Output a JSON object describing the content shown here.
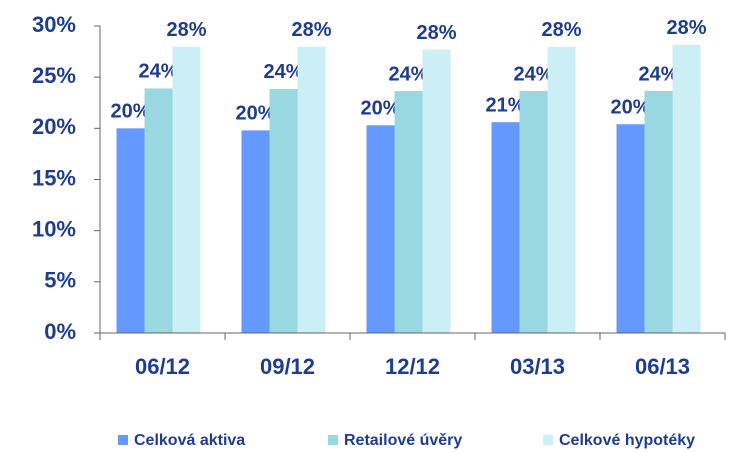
{
  "chart_data": {
    "type": "bar",
    "categories": [
      "06/12",
      "09/12",
      "12/12",
      "03/13",
      "06/13"
    ],
    "series": [
      {
        "name": "Celková aktiva",
        "color": "#6699ff",
        "values": [
          20.0,
          19.8,
          20.3,
          20.6,
          20.4
        ],
        "value_labels": [
          "20%",
          "20%",
          "20%",
          "21%",
          "20%"
        ]
      },
      {
        "name": "Retailové úvěry",
        "color": "#99d8e0",
        "values": [
          23.9,
          23.85,
          23.65,
          23.65,
          23.65
        ],
        "value_labels": [
          "24%",
          "24%",
          "24%",
          "24%",
          "24%"
        ]
      },
      {
        "name": "Celkové hypotéky",
        "color": "#cceef5",
        "values": [
          27.96,
          27.96,
          27.7,
          27.96,
          28.15
        ],
        "value_labels": [
          "28%",
          "28%",
          "28%",
          "28%",
          "28%"
        ]
      }
    ],
    "ylim": [
      0,
      30
    ],
    "yticks": [
      {
        "value": 0,
        "label": "0%"
      },
      {
        "value": 5,
        "label": "5%"
      },
      {
        "value": 10,
        "label": "10%"
      },
      {
        "value": 15,
        "label": "15%"
      },
      {
        "value": 20,
        "label": "20%"
      },
      {
        "value": 25,
        "label": "25%"
      },
      {
        "value": 30,
        "label": "30%"
      }
    ],
    "grid": false,
    "legend": "bottom"
  }
}
